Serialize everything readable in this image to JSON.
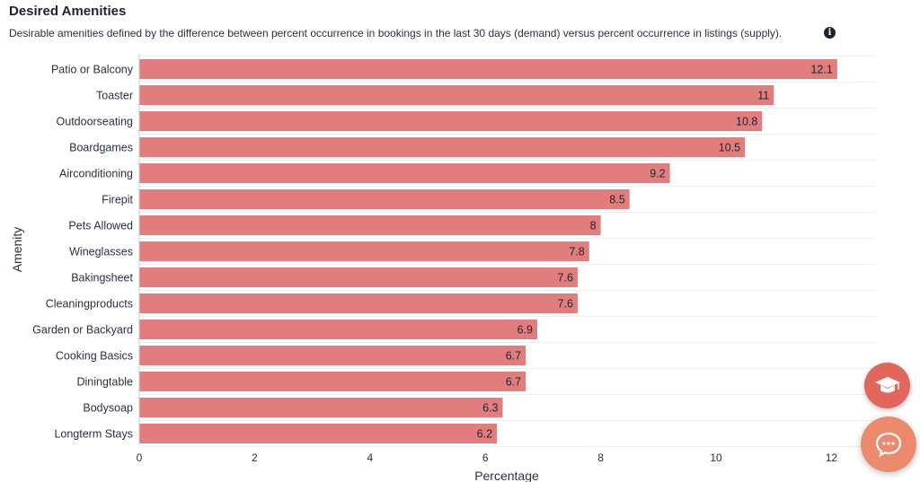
{
  "header": {
    "title": "Desired Amenities",
    "subtitle": "Desirable amenities defined by the difference between percent occurrence in bookings in the last 30 days (demand) versus percent occurrence in listings (supply).",
    "info_icon": "i"
  },
  "chart_data": {
    "type": "bar",
    "orientation": "horizontal",
    "categories": [
      "Patio or Balcony",
      "Toaster",
      "Outdoorseating",
      "Boardgames",
      "Airconditioning",
      "Firepit",
      "Pets Allowed",
      "Wineglasses",
      "Bakingsheet",
      "Cleaningproducts",
      "Garden or Backyard",
      "Cooking Basics",
      "Diningtable",
      "Bodysoap",
      "Longterm Stays"
    ],
    "values": [
      12.1,
      11,
      10.8,
      10.5,
      9.2,
      8.5,
      8,
      7.8,
      7.6,
      7.6,
      6.9,
      6.7,
      6.7,
      6.3,
      6.2
    ],
    "value_labels": [
      "12.1",
      "11",
      "10.8",
      "10.5",
      "9.2",
      "8.5",
      "8",
      "7.8",
      "7.6",
      "7.6",
      "6.9",
      "6.7",
      "6.7",
      "6.3",
      "6.2"
    ],
    "xlabel": "Percentage",
    "ylabel": "Amenity",
    "xlim": [
      0,
      12.7
    ],
    "xticks": [
      0,
      2,
      4,
      6,
      8,
      10,
      12
    ],
    "xtick_labels": [
      "0",
      "2",
      "4",
      "6",
      "8",
      "10",
      "12"
    ],
    "grid": true,
    "bar_color": "#e27d7d"
  },
  "fabs": {
    "learn_icon": "graduation-cap-icon",
    "chat_icon": "chat-bubble-icon"
  }
}
